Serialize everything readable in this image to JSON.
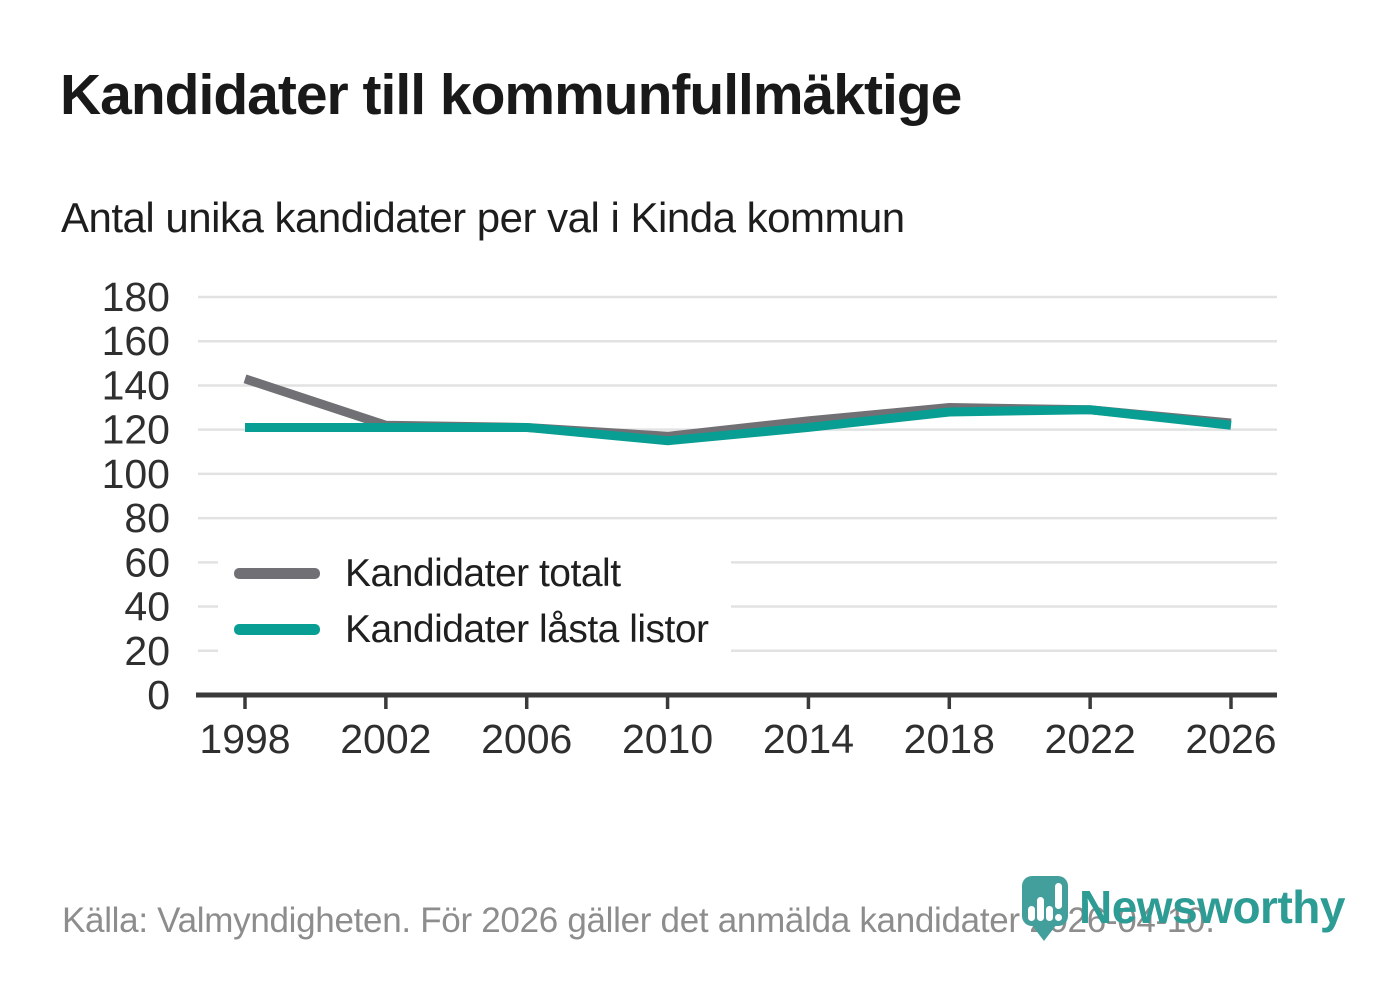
{
  "header": {
    "title": "Kandidater till kommunfullmäktige",
    "subtitle": "Antal unika kandidater per val i Kinda kommun"
  },
  "chart_data": {
    "type": "line",
    "title": "Kandidater till kommunfullmäktige",
    "subtitle": "Antal unika kandidater per val i Kinda kommun",
    "categories": [
      "1998",
      "2002",
      "2006",
      "2010",
      "2014",
      "2018",
      "2022",
      "2026"
    ],
    "series": [
      {
        "name": "Kandidater totalt",
        "color": "#717175",
        "values": [
          143,
          122,
          121,
          117,
          124,
          130,
          129,
          123
        ]
      },
      {
        "name": "Kandidater låsta listor",
        "color": "#089e93",
        "values": [
          121,
          121,
          121,
          115,
          121,
          128,
          129,
          122
        ]
      }
    ],
    "xlabel": "",
    "ylabel": "",
    "ylim": [
      0,
      180
    ],
    "yticks": [
      0,
      20,
      40,
      60,
      80,
      100,
      120,
      140,
      160,
      180
    ],
    "grid": true,
    "legend_position": "inside-bottom-left"
  },
  "footer": {
    "source": "Källa: Valmyndigheten. För 2026 gäller det anmälda kandidater 2026-04-10.",
    "logo_text": "Newsworthy"
  },
  "colors": {
    "grid": "#e2e2e2",
    "axis": "#3a3a3a",
    "tick_label": "#2f2f2f",
    "logo_badge": "#429f9b",
    "logo_text": "#2c9c94"
  }
}
